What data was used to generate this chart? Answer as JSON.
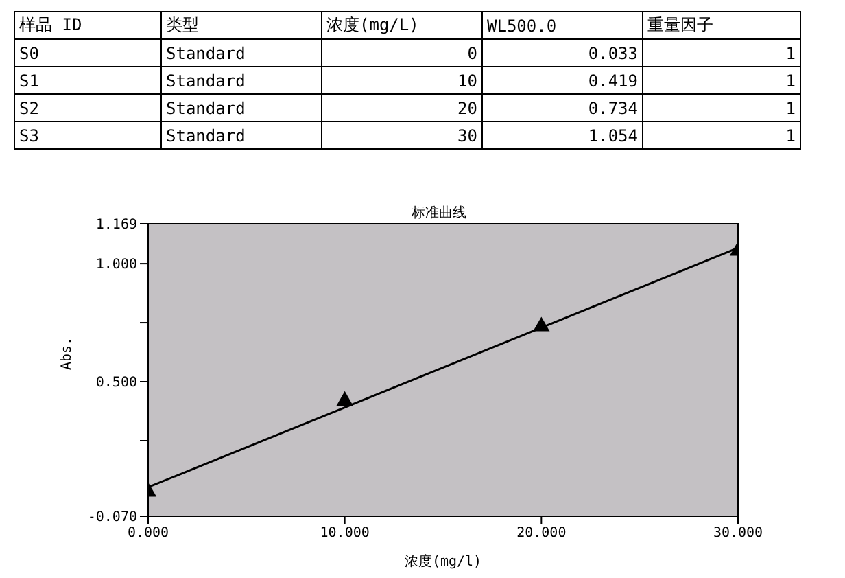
{
  "chart_data": {
    "type": "scatter",
    "title": "标准曲线",
    "xlabel": "浓度(mg/l)",
    "ylabel": "Abs.",
    "annotations": [
      "样品 ID",
      "类型",
      "浓度(mg/L)",
      "WL500.0",
      "重量因子",
      "S0",
      "Standard",
      "0",
      "0.033",
      "1",
      "S1",
      "Standard",
      "10",
      "0.419",
      "1",
      "S2",
      "Standard",
      "20",
      "0.734",
      "1",
      "S3",
      "Standard",
      "30",
      "1.054",
      "1"
    ],
    "marker": "triangle",
    "xlim": [
      0,
      30
    ],
    "xticks": [
      {
        "value": 0,
        "label": "0.000"
      },
      {
        "value": 10,
        "label": "10.000"
      },
      {
        "value": 20,
        "label": "20.000"
      },
      {
        "value": 30,
        "label": "30.000"
      }
    ],
    "ylim": [
      -0.07,
      1.169
    ],
    "yticks": [
      {
        "value": -0.07,
        "label": "-0.070"
      },
      {
        "value": 0.25,
        "label": null
      },
      {
        "value": 0.5,
        "label": "0.500"
      },
      {
        "value": 0.75,
        "label": null
      },
      {
        "value": 1,
        "label": "1.000"
      },
      {
        "value": 1.169,
        "label": "1.169"
      }
    ],
    "series": [
      {
        "color": "#000000",
        "x": [
          0,
          10,
          20,
          30
        ],
        "values": [
          0.033,
          0.419,
          0.734,
          1.054
        ]
      },
      {
        "type": "line",
        "color": "#000000",
        "marker": "none",
        "x": [
          0,
          30
        ],
        "values": [
          0.053,
          1.067
        ]
      }
    ]
  }
}
